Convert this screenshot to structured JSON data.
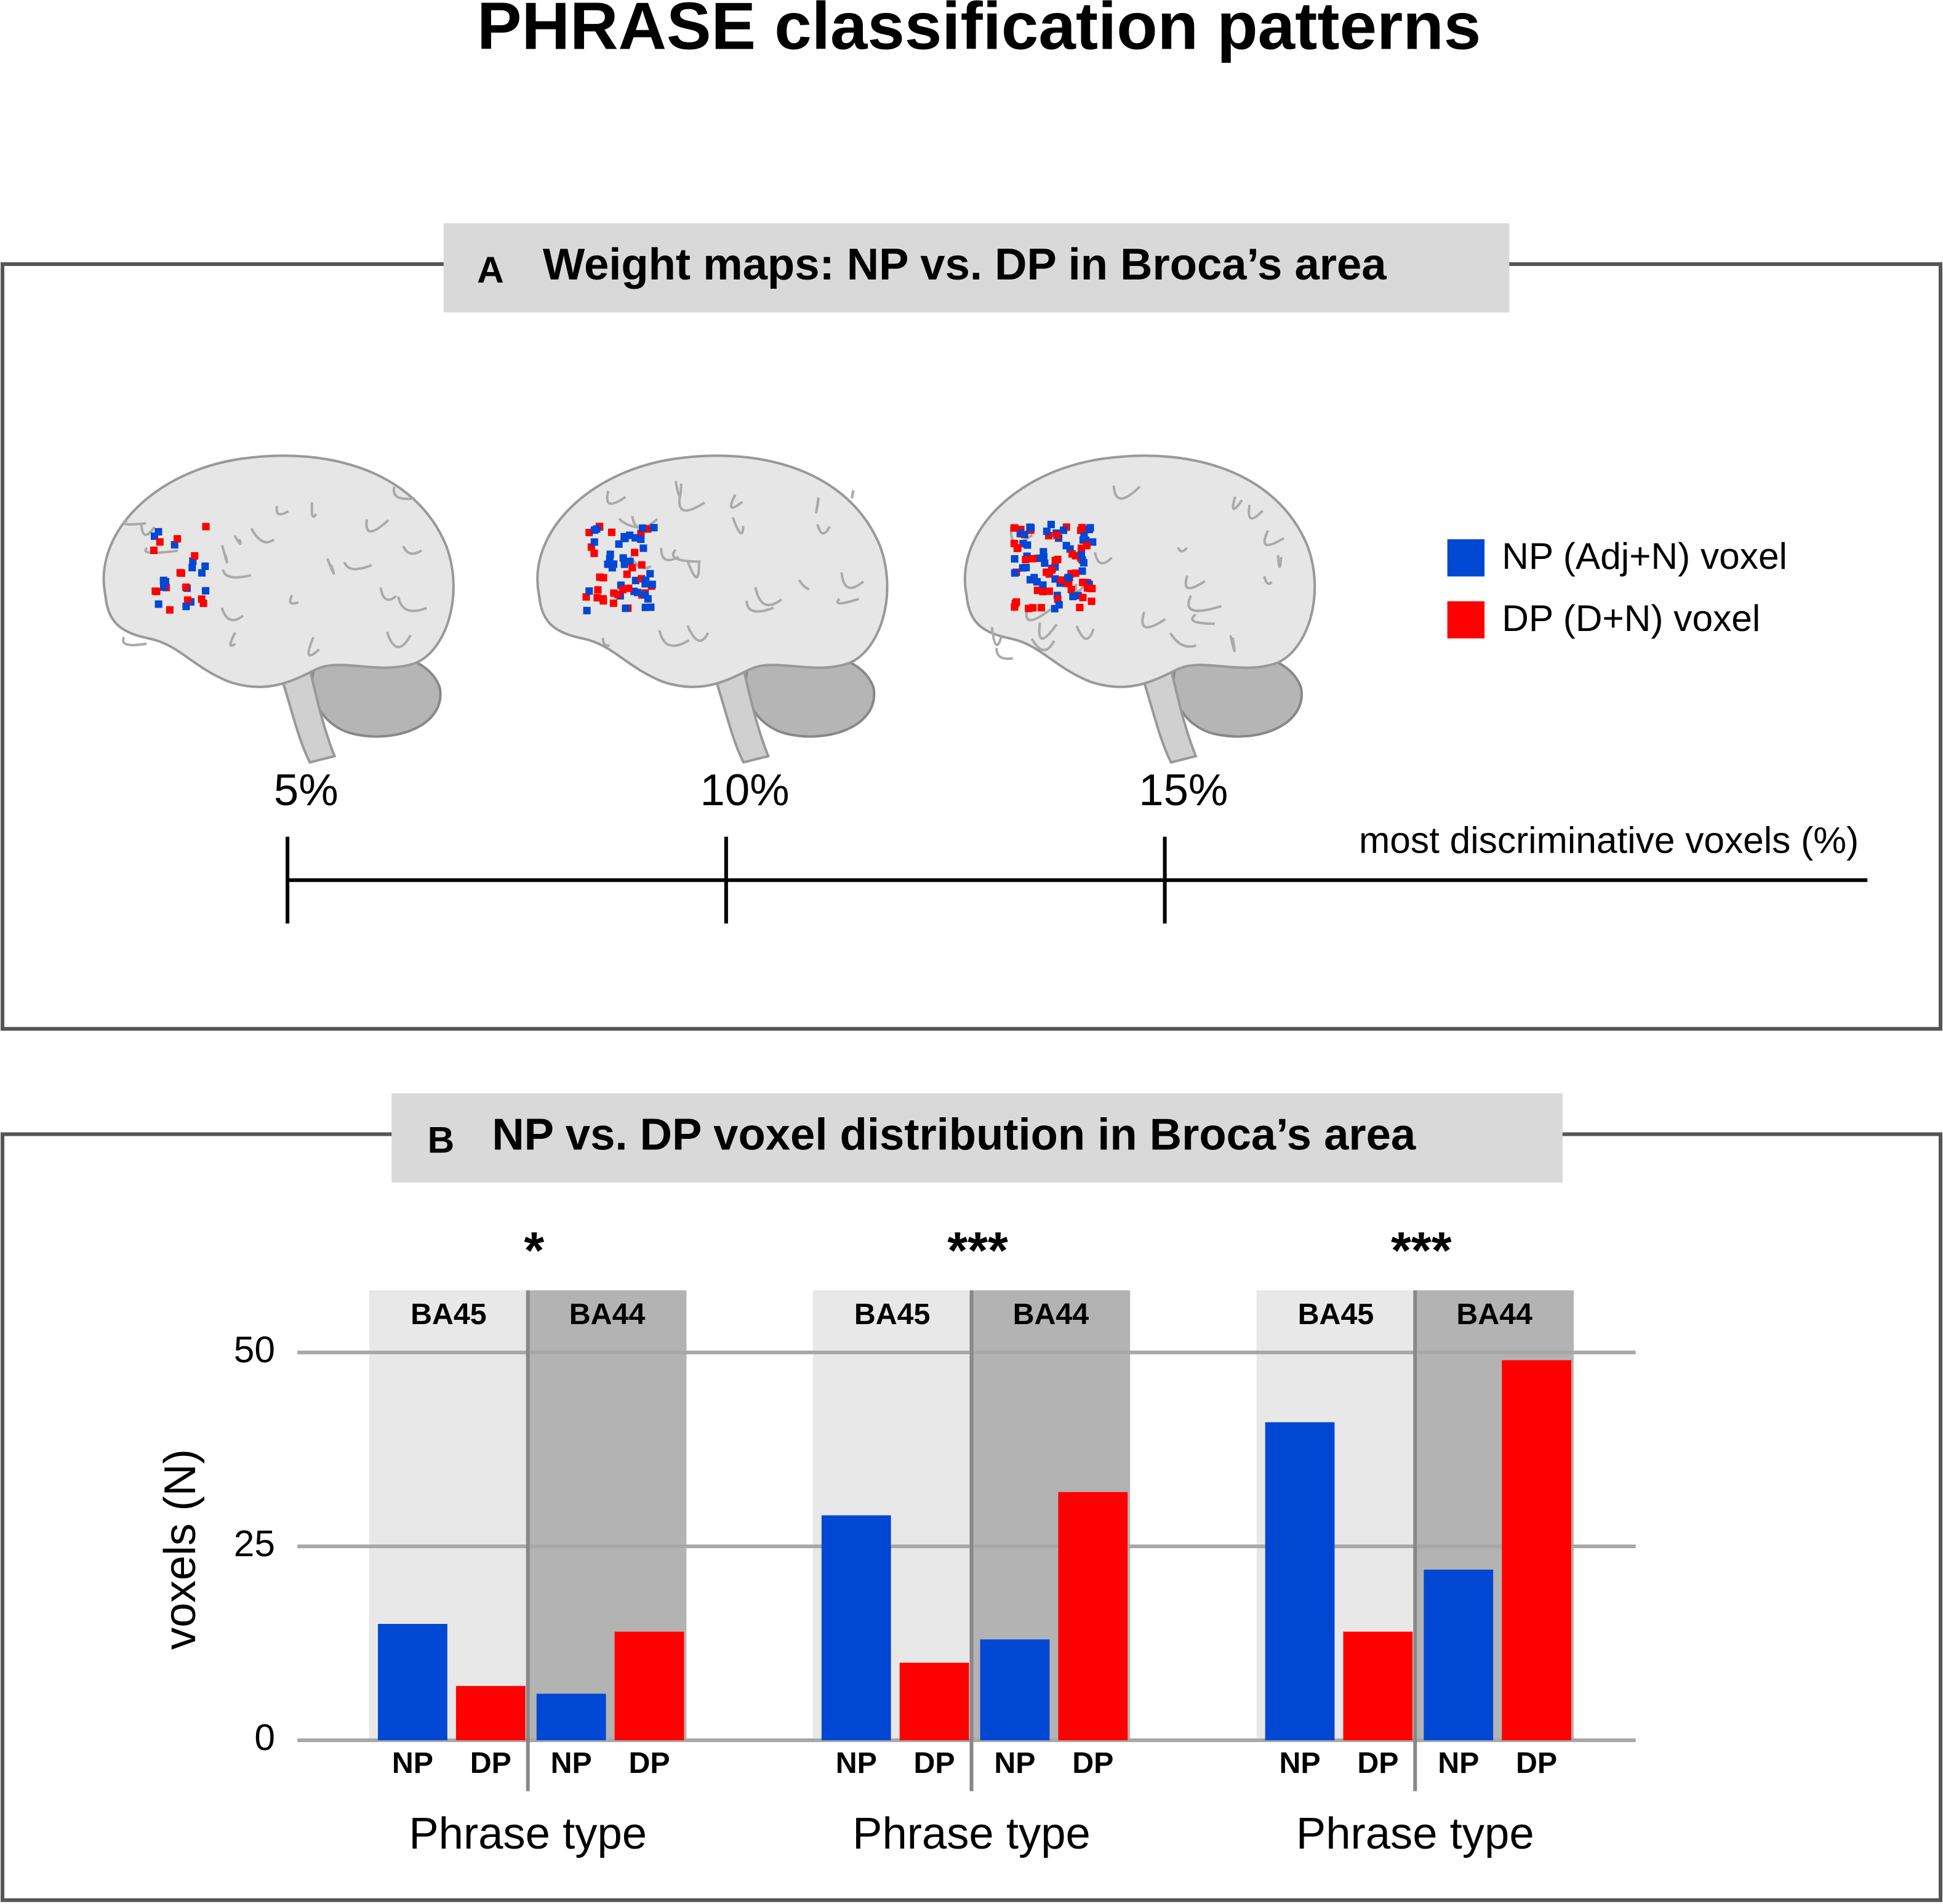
{
  "title": "PHRASE classification patterns",
  "panel_a": {
    "label": "A",
    "title": "Weight maps: NP vs. DP in Broca’s area",
    "legend": [
      {
        "name": "NP (Adj+N) voxel",
        "color": "#0047d3"
      },
      {
        "name": "DP (D+N) voxel",
        "color": "#ff0000"
      }
    ],
    "scale": {
      "label": "most discriminative voxels (%)",
      "ticks": [
        {
          "value": 5,
          "label": "5%"
        },
        {
          "value": 10,
          "label": "10%"
        },
        {
          "value": 15,
          "label": "15%"
        }
      ]
    }
  },
  "chart_data": {
    "type": "grouped_bar",
    "label": "B",
    "title": "NP vs. DP voxel distribution in Broca’s area",
    "ylabel": "voxels (N)",
    "ylim": [
      0,
      58
    ],
    "yticks": [
      0,
      25,
      50
    ],
    "grid": true,
    "colors": [
      "#0047d3",
      "#ff0000"
    ],
    "groups": [
      {
        "annotation": "*",
        "xlabel": "Phrase type",
        "regions": [
          {
            "name": "BA45",
            "shade": "#e8e8e8",
            "categories": [
              "NP",
              "DP"
            ],
            "values": [
              15,
              7
            ]
          },
          {
            "name": "BA44",
            "shade": "#b3b3b3",
            "categories": [
              "NP",
              "DP"
            ],
            "values": [
              6,
              14
            ]
          }
        ]
      },
      {
        "annotation": "***",
        "xlabel": "Phrase type",
        "regions": [
          {
            "name": "BA45",
            "shade": "#e8e8e8",
            "categories": [
              "NP",
              "DP"
            ],
            "values": [
              29,
              10
            ]
          },
          {
            "name": "BA44",
            "shade": "#b3b3b3",
            "categories": [
              "NP",
              "DP"
            ],
            "values": [
              13,
              32
            ]
          }
        ]
      },
      {
        "annotation": "***",
        "xlabel": "Phrase type",
        "regions": [
          {
            "name": "BA45",
            "shade": "#e8e8e8",
            "categories": [
              "NP",
              "DP"
            ],
            "values": [
              41,
              14
            ]
          },
          {
            "name": "BA44",
            "shade": "#b3b3b3",
            "categories": [
              "NP",
              "DP"
            ],
            "values": [
              22,
              49
            ]
          }
        ]
      }
    ]
  }
}
